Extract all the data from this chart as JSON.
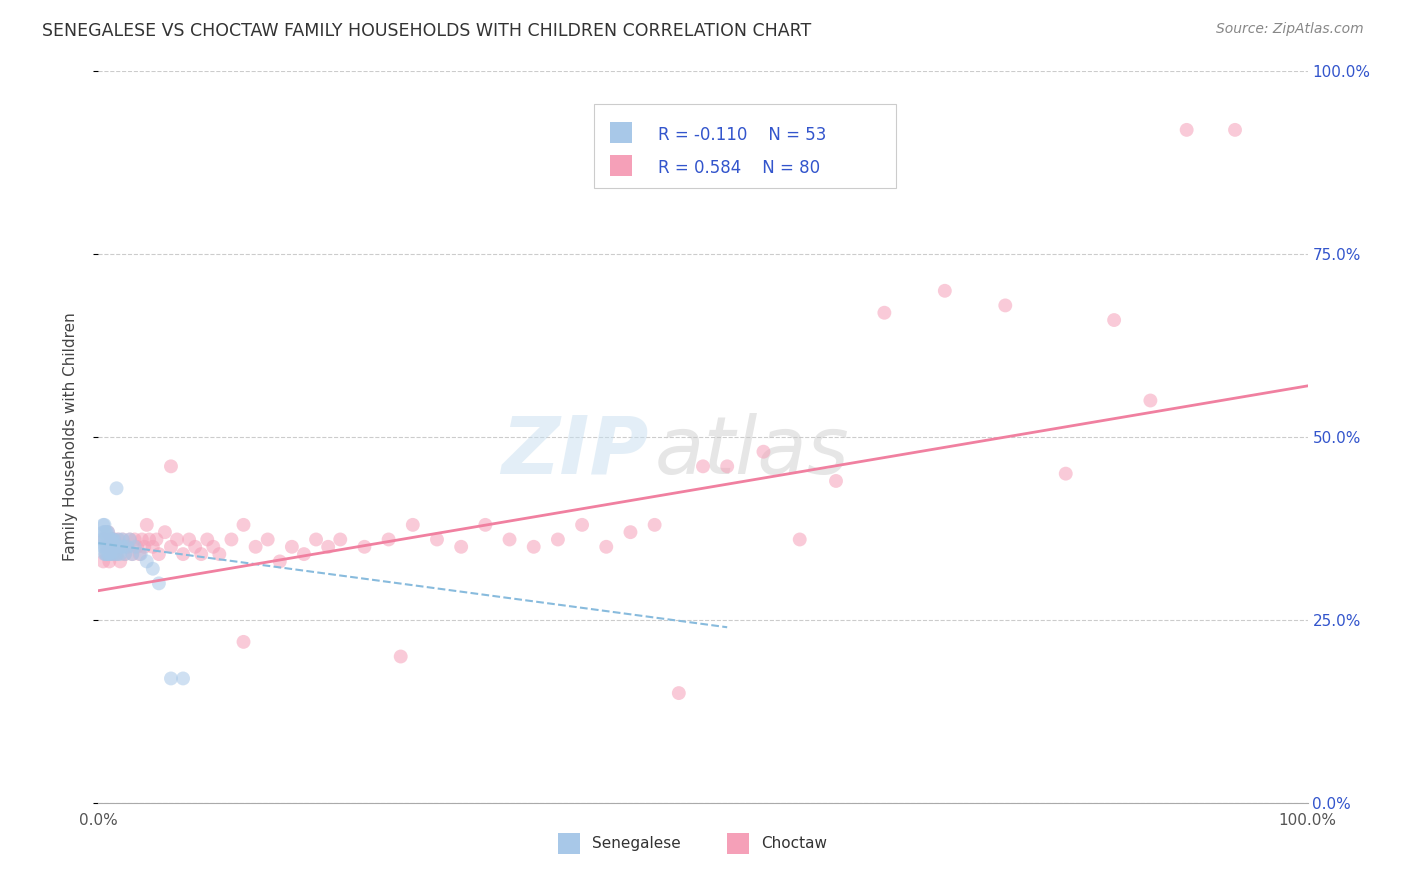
{
  "title": "SENEGALESE VS CHOCTAW FAMILY HOUSEHOLDS WITH CHILDREN CORRELATION CHART",
  "source": "Source: ZipAtlas.com",
  "ylabel": "Family Households with Children",
  "xlim": [
    0,
    1
  ],
  "ylim": [
    0,
    1
  ],
  "ytick_vals": [
    0.0,
    0.25,
    0.5,
    0.75,
    1.0
  ],
  "ytick_labels": [
    "0.0%",
    "25.0%",
    "50.0%",
    "75.0%",
    "100.0%"
  ],
  "xtick_vals": [
    0.0,
    1.0
  ],
  "xtick_labels": [
    "0.0%",
    "100.0%"
  ],
  "watermark_line1": "ZIP",
  "watermark_line2": "atlas",
  "legend_r1": "R = -0.110",
  "legend_n1": "N = 53",
  "legend_r2": "R = 0.584",
  "legend_n2": "N = 80",
  "color_senegalese": "#a8c8e8",
  "color_choctaw": "#f5a0b8",
  "color_line_senegalese": "#88bbdd",
  "color_line_choctaw": "#f080a0",
  "color_legend_text_blue": "#3355cc",
  "color_tick_right": "#3355cc",
  "color_grid": "#cccccc",
  "background_color": "#ffffff",
  "scatter_alpha": 0.55,
  "marker_size": 100,
  "senegalese_x": [
    0.003,
    0.004,
    0.004,
    0.004,
    0.005,
    0.005,
    0.005,
    0.005,
    0.005,
    0.006,
    0.006,
    0.006,
    0.006,
    0.007,
    0.007,
    0.007,
    0.007,
    0.008,
    0.008,
    0.008,
    0.008,
    0.009,
    0.009,
    0.009,
    0.01,
    0.01,
    0.01,
    0.011,
    0.011,
    0.012,
    0.012,
    0.013,
    0.013,
    0.014,
    0.015,
    0.015,
    0.016,
    0.017,
    0.018,
    0.019,
    0.02,
    0.021,
    0.022,
    0.024,
    0.026,
    0.028,
    0.03,
    0.035,
    0.04,
    0.045,
    0.05,
    0.06,
    0.07
  ],
  "senegalese_y": [
    0.36,
    0.37,
    0.35,
    0.38,
    0.35,
    0.36,
    0.37,
    0.34,
    0.38,
    0.35,
    0.36,
    0.34,
    0.37,
    0.35,
    0.36,
    0.34,
    0.37,
    0.35,
    0.36,
    0.34,
    0.37,
    0.35,
    0.36,
    0.34,
    0.35,
    0.36,
    0.34,
    0.35,
    0.36,
    0.34,
    0.36,
    0.35,
    0.36,
    0.34,
    0.35,
    0.43,
    0.34,
    0.36,
    0.34,
    0.35,
    0.36,
    0.35,
    0.34,
    0.35,
    0.36,
    0.34,
    0.35,
    0.34,
    0.33,
    0.32,
    0.3,
    0.17,
    0.17
  ],
  "choctaw_x": [
    0.004,
    0.005,
    0.006,
    0.007,
    0.008,
    0.009,
    0.01,
    0.011,
    0.012,
    0.013,
    0.014,
    0.015,
    0.016,
    0.017,
    0.018,
    0.02,
    0.022,
    0.024,
    0.026,
    0.028,
    0.03,
    0.032,
    0.034,
    0.036,
    0.038,
    0.04,
    0.042,
    0.045,
    0.048,
    0.05,
    0.055,
    0.06,
    0.065,
    0.07,
    0.075,
    0.08,
    0.085,
    0.09,
    0.095,
    0.1,
    0.11,
    0.12,
    0.13,
    0.14,
    0.15,
    0.16,
    0.17,
    0.18,
    0.19,
    0.2,
    0.22,
    0.24,
    0.26,
    0.28,
    0.3,
    0.32,
    0.34,
    0.36,
    0.38,
    0.4,
    0.42,
    0.44,
    0.46,
    0.5,
    0.52,
    0.55,
    0.58,
    0.61,
    0.65,
    0.7,
    0.75,
    0.8,
    0.84,
    0.87,
    0.9,
    0.06,
    0.12,
    0.25,
    0.48,
    0.94
  ],
  "choctaw_y": [
    0.33,
    0.36,
    0.34,
    0.35,
    0.37,
    0.33,
    0.35,
    0.36,
    0.34,
    0.36,
    0.35,
    0.34,
    0.36,
    0.35,
    0.33,
    0.36,
    0.34,
    0.35,
    0.36,
    0.34,
    0.36,
    0.35,
    0.34,
    0.36,
    0.35,
    0.38,
    0.36,
    0.35,
    0.36,
    0.34,
    0.37,
    0.35,
    0.36,
    0.34,
    0.36,
    0.35,
    0.34,
    0.36,
    0.35,
    0.34,
    0.36,
    0.38,
    0.35,
    0.36,
    0.33,
    0.35,
    0.34,
    0.36,
    0.35,
    0.36,
    0.35,
    0.36,
    0.38,
    0.36,
    0.35,
    0.38,
    0.36,
    0.35,
    0.36,
    0.38,
    0.35,
    0.37,
    0.38,
    0.46,
    0.46,
    0.48,
    0.36,
    0.44,
    0.67,
    0.7,
    0.68,
    0.45,
    0.66,
    0.55,
    0.92,
    0.46,
    0.22,
    0.2,
    0.15,
    0.92
  ],
  "sen_line_x0": 0.0,
  "sen_line_x1": 0.52,
  "sen_line_y0": 0.355,
  "sen_line_y1": 0.24,
  "choc_line_x0": 0.0,
  "choc_line_x1": 1.0,
  "choc_line_y0": 0.29,
  "choc_line_y1": 0.57
}
